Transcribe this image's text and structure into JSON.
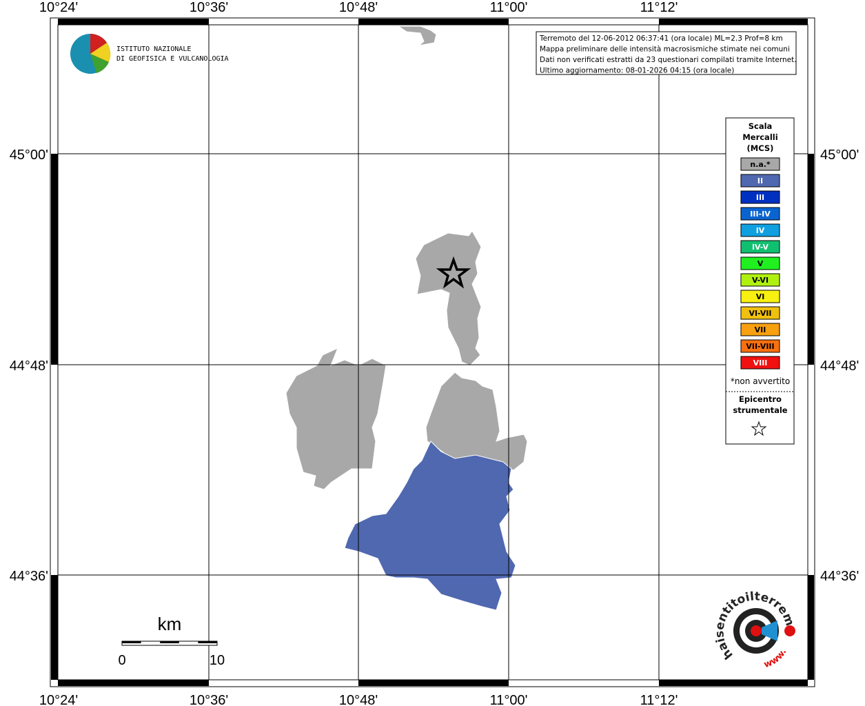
{
  "map": {
    "lon_labels": [
      "10°24'",
      "10°36'",
      "10°48'",
      "11°00'",
      "11°12'"
    ],
    "lat_labels": [
      "45°00'",
      "44°48'",
      "44°36'"
    ],
    "info": {
      "lines": [
        "Terremoto del 12-06-2012 06:37:41 (ora locale) ML=2.3 Prof=8 km",
        "Mappa preliminare delle intensità macrosismiche stimate nei comuni",
        "Dati non verificati estratti da 23 questionari compilati tramite Internet.",
        "Ultimo aggiornamento: 08-01-2026 04:15 (ora locale)"
      ]
    },
    "legend": {
      "title": [
        "Scala",
        "Mercalli",
        "(MCS)"
      ],
      "classes": [
        {
          "label": "n.a.*",
          "color": "#a8a8a8"
        },
        {
          "label": "II",
          "color": "#5068b0"
        },
        {
          "label": "III",
          "color": "#0030c0"
        },
        {
          "label": "III-IV",
          "color": "#0a64d0"
        },
        {
          "label": "IV",
          "color": "#10a0e0"
        },
        {
          "label": "IV-V",
          "color": "#10c070"
        },
        {
          "label": "V",
          "color": "#20f020"
        },
        {
          "label": "V-VI",
          "color": "#b0f010"
        },
        {
          "label": "VI",
          "color": "#f8f010"
        },
        {
          "label": "VI-VII",
          "color": "#f0c010"
        },
        {
          "label": "VII",
          "color": "#f8a010"
        },
        {
          "label": "VII-VIII",
          "color": "#f87010"
        },
        {
          "label": "VIII",
          "color": "#f01010"
        }
      ],
      "footnote": "*non avvertito",
      "epicenter_title": [
        "Epicentro",
        "strumentale"
      ]
    },
    "scale_bar": {
      "unit": "km",
      "labels": [
        "0",
        "10"
      ]
    },
    "logos": {
      "ingv": [
        "ISTITUTO NAZIONALE",
        "DI GEOFISICA E VULCANOLOGIA"
      ],
      "hst": "haisentitoilterremoto.it",
      "www": "www."
    }
  }
}
